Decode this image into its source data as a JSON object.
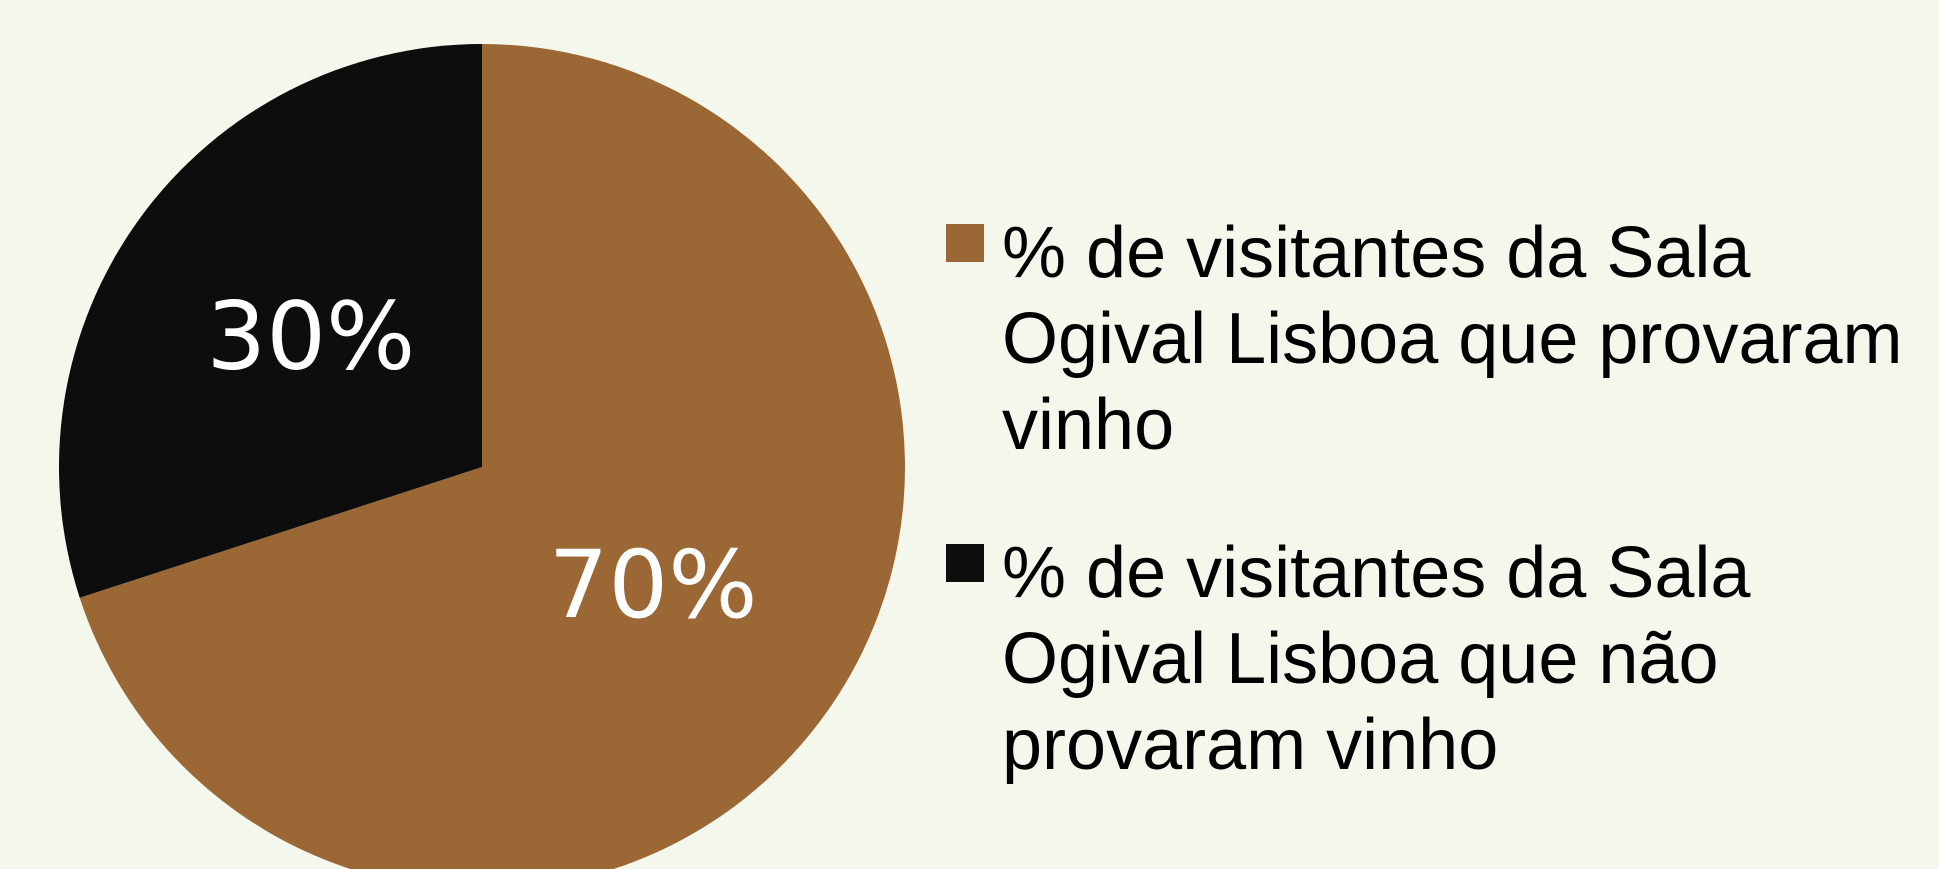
{
  "chart_data": {
    "type": "pie",
    "categories": [
      "% de visitantes da Sala Ogival Lisboa que provaram vinho",
      "% de visitantes da Sala Ogival Lisboa que não provaram vinho"
    ],
    "values": [
      70,
      30
    ],
    "value_labels": [
      "70%",
      "30%"
    ],
    "colors": [
      "#9a6735",
      "#0d0d0d"
    ]
  }
}
